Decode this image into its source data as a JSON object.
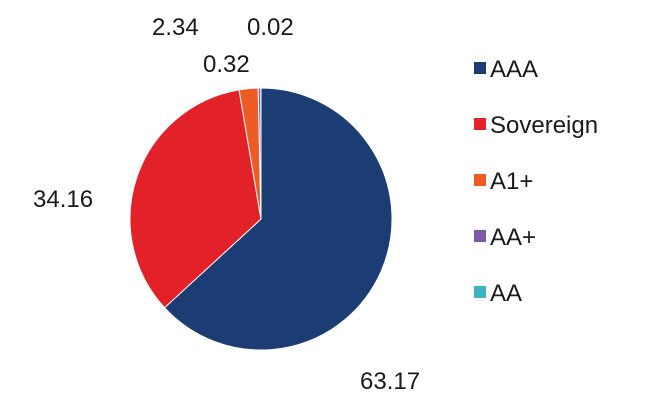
{
  "chart_data": {
    "type": "pie",
    "categories": [
      "AAA",
      "Sovereign",
      "A1+",
      "AA+",
      "AA"
    ],
    "values": [
      63.17,
      34.16,
      2.34,
      0.32,
      0.02
    ],
    "colors": [
      "#1c3d73",
      "#e32128",
      "#ee5b24",
      "#7e5ba6",
      "#3fb3c6"
    ],
    "data_labels": [
      "63.17",
      "34.16",
      "2.34",
      "0.32",
      "0.02"
    ],
    "legend": {
      "position": "right",
      "entries": [
        "AAA",
        "Sovereign",
        "A1+",
        "AA+",
        "AA"
      ]
    }
  }
}
